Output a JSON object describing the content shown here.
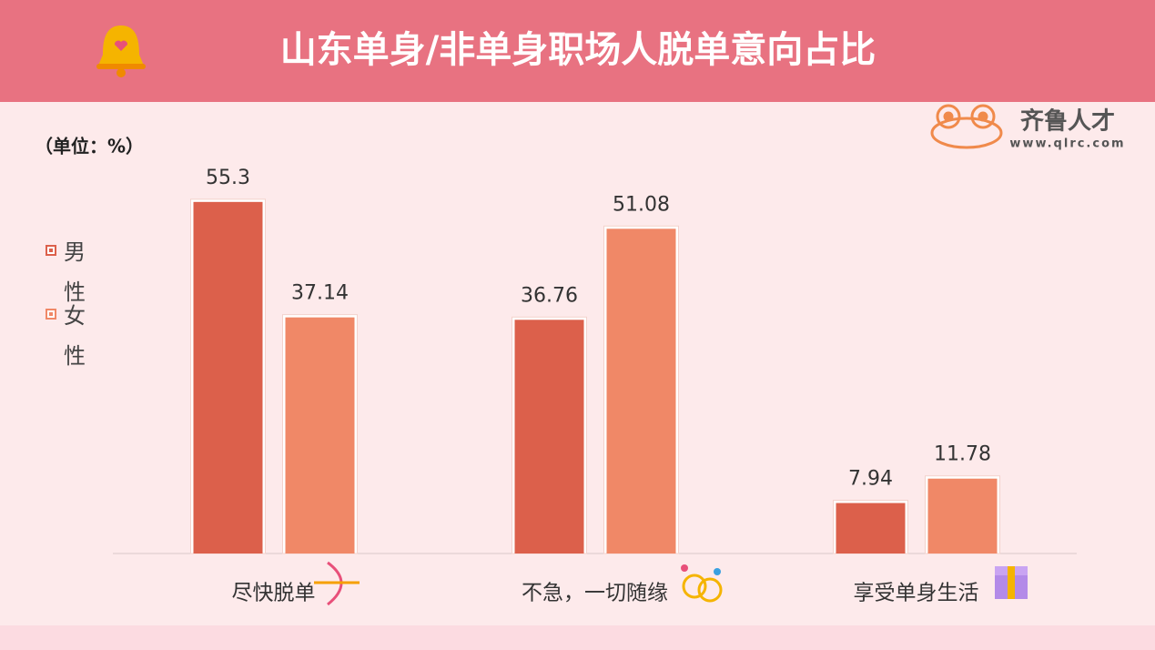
{
  "chart_data": {
    "type": "bar",
    "title": "山东单身/非单身职场人脱单意向占比",
    "unit_label": "（单位：%）",
    "logo_text": "齐鲁人才",
    "logo_url": "www.qlrc.com",
    "categories": [
      "尽快脱单",
      "不急，一切随缘",
      "享受单身生活"
    ],
    "series": [
      {
        "name": "男性",
        "color": "#dc604b",
        "values": [
          55.3,
          36.76,
          7.94
        ]
      },
      {
        "name": "女性",
        "color": "#f08867",
        "values": [
          37.14,
          51.08,
          11.78
        ]
      }
    ],
    "ylim": [
      0,
      60
    ],
    "grid": false,
    "legend": "left"
  }
}
